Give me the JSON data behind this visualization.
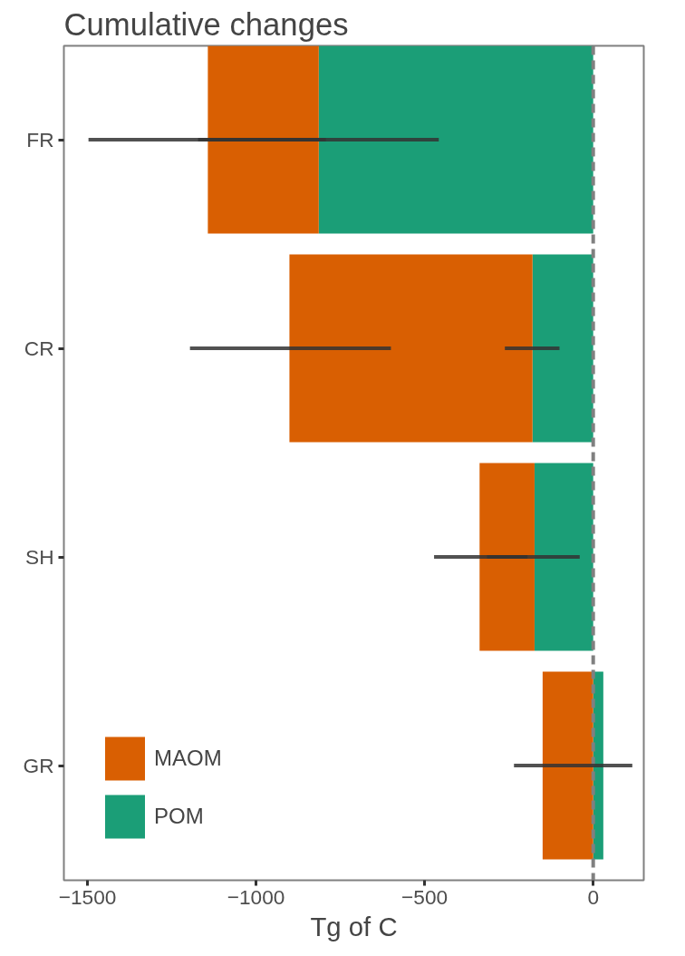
{
  "chart_data": {
    "type": "bar",
    "orientation": "horizontal",
    "stacked": true,
    "title": "Cumulative changes",
    "xlabel": "Tg of C",
    "categories": [
      "FR",
      "CR",
      "SH",
      "GR"
    ],
    "series": [
      {
        "name": "POM",
        "color": "#1b9e77",
        "values": [
          -814,
          -180,
          -174,
          30
        ],
        "errors": [
          [
            -1172,
            -793
          ],
          [
            -262,
            -100
          ],
          [
            -315,
            -195
          ],
          null
        ]
      },
      {
        "name": "MAOM",
        "color": "#d95f02",
        "values": [
          -329,
          -721,
          -163,
          -150
        ],
        "errors": [
          [
            -1497,
            -458
          ],
          [
            -1196,
            -600
          ],
          [
            -472,
            -40
          ],
          [
            -235,
            116
          ]
        ]
      }
    ],
    "xlim": [
      -1570,
      150
    ],
    "xticks": [
      {
        "value": -1500,
        "label": "−1500"
      },
      {
        "value": -1000,
        "label": "−1000"
      },
      {
        "value": -500,
        "label": "−500"
      },
      0
    ],
    "ref_lines": [
      {
        "axis": "x",
        "value": 0,
        "color": "#808080",
        "line_style": "dashed"
      }
    ],
    "grid": false,
    "legend": "bottom left"
  }
}
